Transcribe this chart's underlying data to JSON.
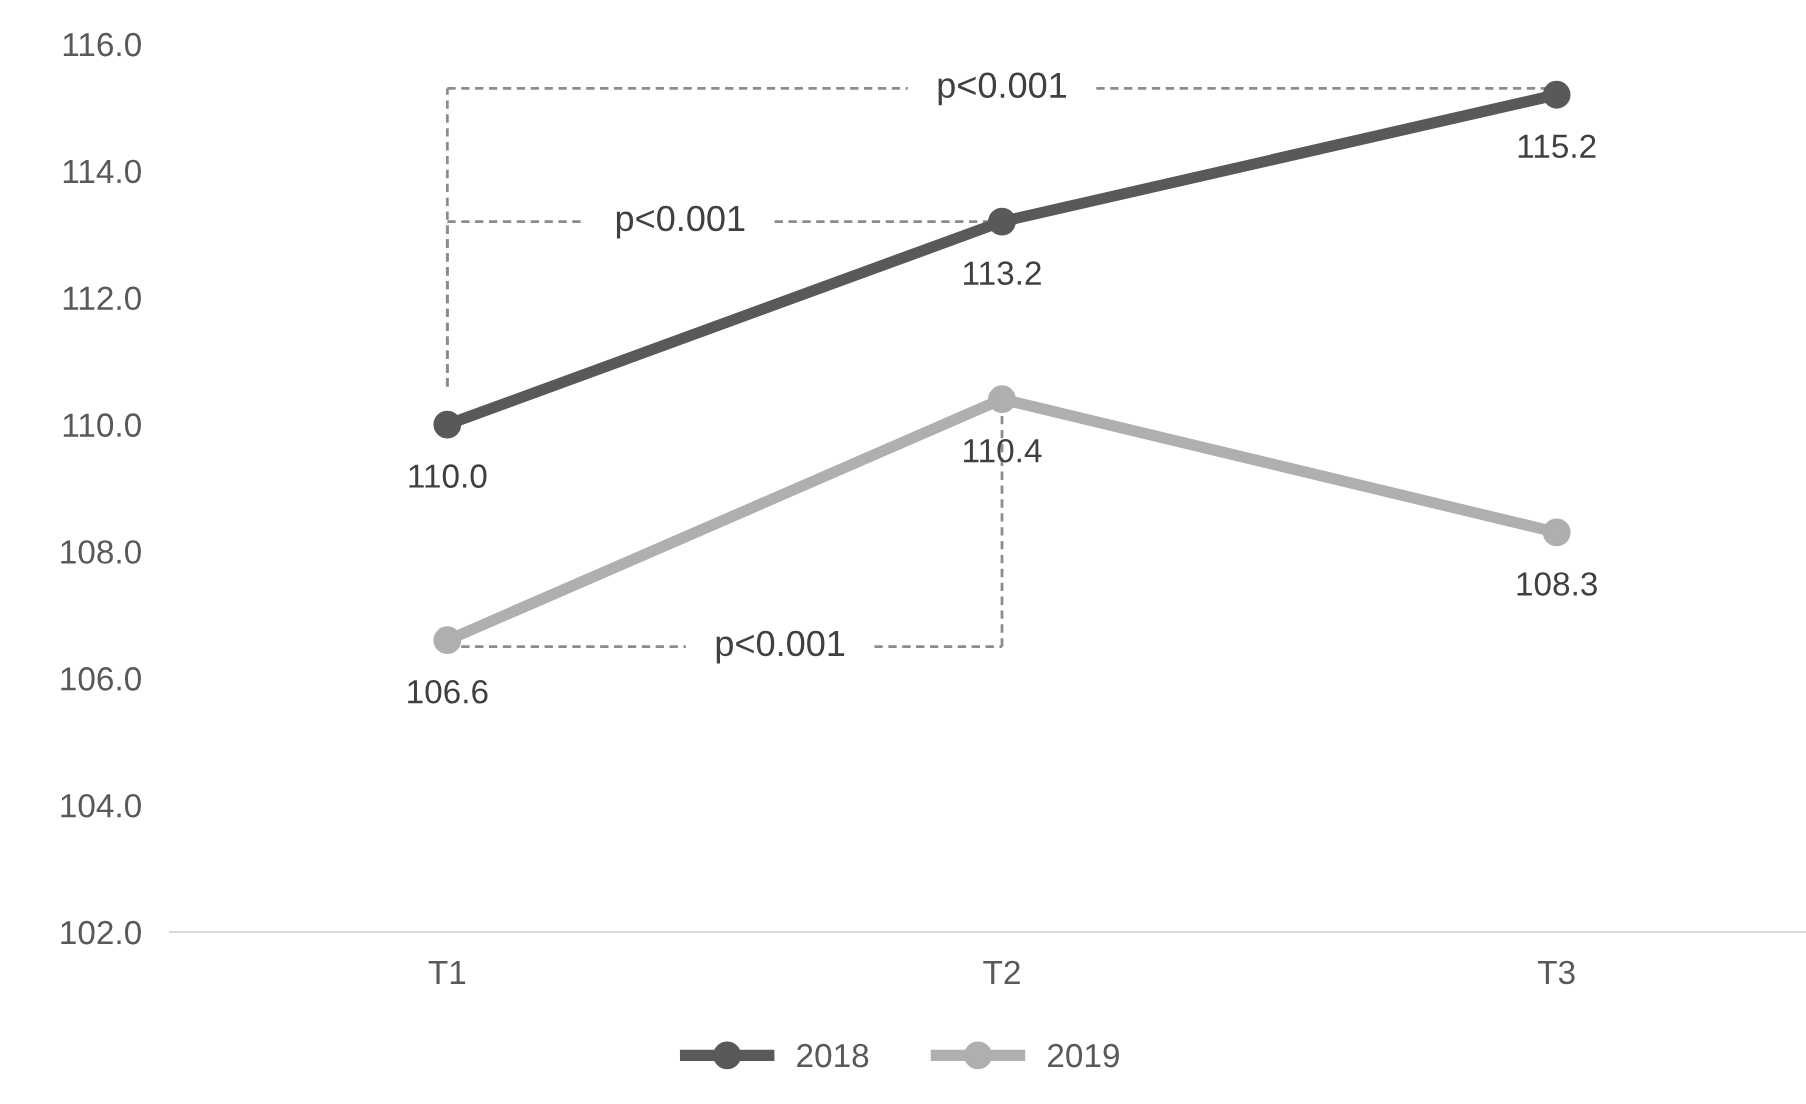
{
  "chart_data": {
    "type": "line",
    "categories": [
      "T1",
      "T2",
      "T3"
    ],
    "series": [
      {
        "name": "2018",
        "color": "#595959",
        "values": [
          110.0,
          113.2,
          115.2
        ],
        "value_labels": [
          "110.0",
          "113.2",
          "115.2"
        ]
      },
      {
        "name": "2019",
        "color": "#afafaf",
        "values": [
          106.6,
          110.4,
          108.3
        ],
        "value_labels": [
          "106.6",
          "110.4",
          "108.3"
        ]
      }
    ],
    "ylim": [
      102,
      116
    ],
    "yticks": [
      {
        "value": 102,
        "label": "102.0"
      },
      {
        "value": 104,
        "label": "104.0"
      },
      {
        "value": 106,
        "label": "106.0"
      },
      {
        "value": 108,
        "label": "108.0"
      },
      {
        "value": 110,
        "label": "110.0"
      },
      {
        "value": 112,
        "label": "112.0"
      },
      {
        "value": 114,
        "label": "114.0"
      },
      {
        "value": 116,
        "label": "116.0"
      }
    ],
    "marker": "circle",
    "line_style": "solid",
    "legend": "bottom",
    "grid": false,
    "annotations": [
      {
        "text": "p<0.001",
        "x": "T3",
        "y": 115.2
      },
      {
        "text": "p<0.001",
        "x": "T2",
        "y": 113.2
      },
      {
        "text": "p<0.001",
        "x": "T1",
        "y": 106.6
      }
    ]
  }
}
